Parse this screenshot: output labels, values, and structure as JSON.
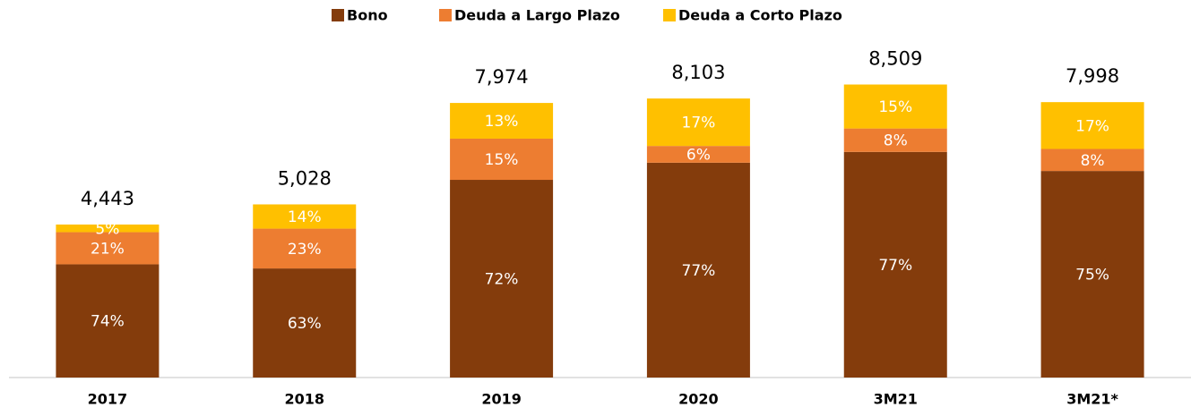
{
  "chart_data": {
    "type": "stacked_bar",
    "categories": [
      "2017",
      "2018",
      "2019",
      "2020",
      "3M21",
      "3M21*"
    ],
    "series": [
      {
        "name": "Bono",
        "color": "#843c0c",
        "values": [
          74,
          63,
          72,
          77,
          77,
          75
        ]
      },
      {
        "name": "Deuda a Largo Plazo",
        "color": "#ed7d31",
        "values": [
          21,
          23,
          15,
          6,
          8,
          8
        ]
      },
      {
        "name": "Deuda a Corto Plazo",
        "color": "#ffc000",
        "values": [
          5,
          14,
          13,
          17,
          15,
          17
        ]
      }
    ],
    "value_labels": [
      [
        "74%",
        "63%",
        "72%",
        "77%",
        "77%",
        "75%"
      ],
      [
        "21%",
        "23%",
        "15%",
        "6%",
        "8%",
        "8%"
      ],
      [
        "5%",
        "14%",
        "13%",
        "17%",
        "15%",
        "17%"
      ]
    ],
    "totals": {
      "values": [
        4443,
        5028,
        7974,
        8103,
        8509,
        7998
      ],
      "value_labels": [
        "4,443",
        "5,028",
        "7,974",
        "8,103",
        "8,509",
        "7,998"
      ]
    },
    "legend": "top"
  }
}
